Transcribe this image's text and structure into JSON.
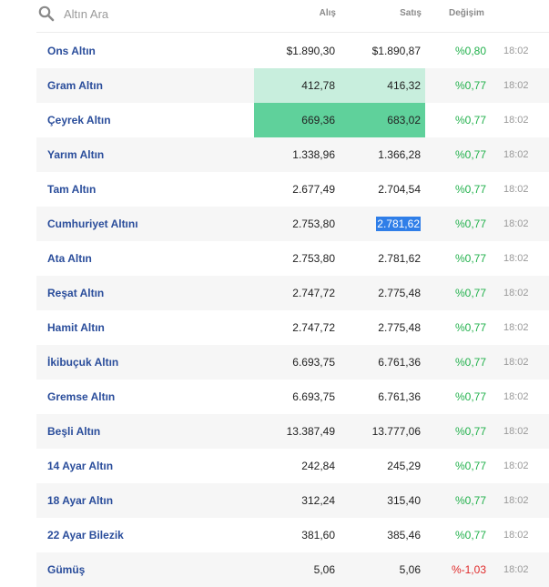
{
  "search": {
    "placeholder": "Altın Ara"
  },
  "columns": {
    "buy": "Alış",
    "sell": "Satış",
    "change": "Değişim"
  },
  "colors": {
    "name": "#2a4d9b",
    "up": "#22b14c",
    "down": "#e02b2b",
    "highlight_light": "#c8eedd",
    "highlight_dark": "#5fd19b",
    "selection": "#2f7ee8"
  },
  "rows": [
    {
      "name": "Ons Altın",
      "buy": "$1.890,30",
      "sell": "$1.890,87",
      "change": "%0,80",
      "trend": "up",
      "time": "18:02"
    },
    {
      "name": "Gram Altın",
      "buy": "412,78",
      "sell": "416,32",
      "change": "%0,77",
      "trend": "up",
      "time": "18:02",
      "highlight": "light"
    },
    {
      "name": "Çeyrek Altın",
      "buy": "669,36",
      "sell": "683,02",
      "change": "%0,77",
      "trend": "up",
      "time": "18:02",
      "highlight": "dark"
    },
    {
      "name": "Yarım Altın",
      "buy": "1.338,96",
      "sell": "1.366,28",
      "change": "%0,77",
      "trend": "up",
      "time": "18:02"
    },
    {
      "name": "Tam Altın",
      "buy": "2.677,49",
      "sell": "2.704,54",
      "change": "%0,77",
      "trend": "up",
      "time": "18:02"
    },
    {
      "name": "Cumhuriyet Altını",
      "buy": "2.753,80",
      "sell": "2.781,62",
      "change": "%0,77",
      "trend": "up",
      "time": "18:02",
      "selected": "sell"
    },
    {
      "name": "Ata Altın",
      "buy": "2.753,80",
      "sell": "2.781,62",
      "change": "%0,77",
      "trend": "up",
      "time": "18:02"
    },
    {
      "name": "Reşat Altın",
      "buy": "2.747,72",
      "sell": "2.775,48",
      "change": "%0,77",
      "trend": "up",
      "time": "18:02"
    },
    {
      "name": "Hamit Altın",
      "buy": "2.747,72",
      "sell": "2.775,48",
      "change": "%0,77",
      "trend": "up",
      "time": "18:02"
    },
    {
      "name": "İkibuçuk Altın",
      "buy": "6.693,75",
      "sell": "6.761,36",
      "change": "%0,77",
      "trend": "up",
      "time": "18:02"
    },
    {
      "name": "Gremse Altın",
      "buy": "6.693,75",
      "sell": "6.761,36",
      "change": "%0,77",
      "trend": "up",
      "time": "18:02"
    },
    {
      "name": "Beşli Altın",
      "buy": "13.387,49",
      "sell": "13.777,06",
      "change": "%0,77",
      "trend": "up",
      "time": "18:02"
    },
    {
      "name": "14 Ayar Altın",
      "buy": "242,84",
      "sell": "245,29",
      "change": "%0,77",
      "trend": "up",
      "time": "18:02"
    },
    {
      "name": "18 Ayar Altın",
      "buy": "312,24",
      "sell": "315,40",
      "change": "%0,77",
      "trend": "up",
      "time": "18:02"
    },
    {
      "name": "22 Ayar Bilezik",
      "buy": "381,60",
      "sell": "385,46",
      "change": "%0,77",
      "trend": "up",
      "time": "18:02"
    },
    {
      "name": "Gümüş",
      "buy": "5,06",
      "sell": "5,06",
      "change": "%-1,03",
      "trend": "down",
      "time": "18:02"
    }
  ]
}
